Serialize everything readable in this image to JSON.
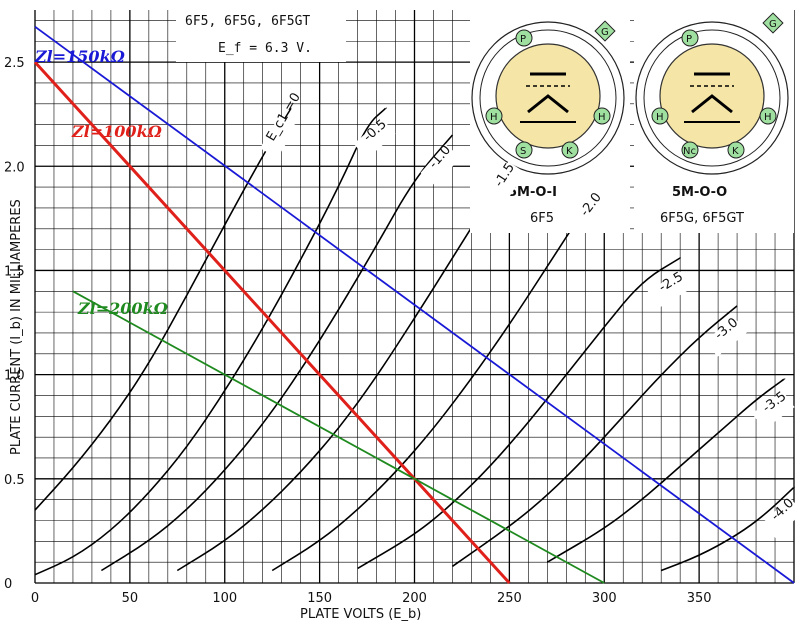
{
  "chart_data": {
    "type": "line",
    "title": {
      "tubes": "6F5, 6F5G, 6F5GT",
      "heater": "E_f = 6.3 V."
    },
    "xlabel": "PLATE VOLTS (E_b)",
    "ylabel": "PLATE CURRENT (I_b) IN MILLIAMPERES",
    "xlim": [
      0,
      400
    ],
    "ylim": [
      0,
      2.75
    ],
    "x_ticks": [
      "0",
      "50",
      "100",
      "150",
      "200",
      "250",
      "300",
      "350"
    ],
    "y_ticks": [
      "0",
      "0.5",
      "1.0",
      "1.5",
      "2.0",
      "2.5"
    ],
    "grid": true,
    "series": [
      {
        "name": "E_c1 = 0",
        "label": "E_c1 =0",
        "points": [
          [
            0,
            0.35
          ],
          [
            20,
            0.55
          ],
          [
            40,
            0.78
          ],
          [
            60,
            1.05
          ],
          [
            80,
            1.38
          ],
          [
            100,
            1.72
          ],
          [
            120,
            2.05
          ],
          [
            135,
            2.28
          ]
        ]
      },
      {
        "name": "-0.5",
        "label": "-0.5",
        "points": [
          [
            0,
            0.04
          ],
          [
            20,
            0.12
          ],
          [
            40,
            0.25
          ],
          [
            60,
            0.43
          ],
          [
            80,
            0.65
          ],
          [
            100,
            0.92
          ],
          [
            120,
            1.22
          ],
          [
            140,
            1.55
          ],
          [
            160,
            1.9
          ],
          [
            175,
            2.2
          ],
          [
            185,
            2.28
          ]
        ]
      },
      {
        "name": "-1.0",
        "label": "-1.0",
        "points": [
          [
            35,
            0.06
          ],
          [
            60,
            0.2
          ],
          [
            80,
            0.35
          ],
          [
            100,
            0.54
          ],
          [
            120,
            0.76
          ],
          [
            140,
            1.02
          ],
          [
            160,
            1.31
          ],
          [
            180,
            1.62
          ],
          [
            200,
            1.94
          ],
          [
            220,
            2.15
          ]
        ]
      },
      {
        "name": "-1.5",
        "label": "-1.5",
        "points": [
          [
            75,
            0.06
          ],
          [
            100,
            0.2
          ],
          [
            120,
            0.35
          ],
          [
            140,
            0.53
          ],
          [
            160,
            0.74
          ],
          [
            180,
            0.99
          ],
          [
            200,
            1.27
          ],
          [
            220,
            1.56
          ],
          [
            240,
            1.85
          ],
          [
            255,
            2.06
          ]
        ]
      },
      {
        "name": "-2.0",
        "label": "-2.0",
        "points": [
          [
            125,
            0.06
          ],
          [
            150,
            0.2
          ],
          [
            170,
            0.35
          ],
          [
            190,
            0.53
          ],
          [
            210,
            0.74
          ],
          [
            230,
            0.98
          ],
          [
            250,
            1.24
          ],
          [
            270,
            1.52
          ],
          [
            290,
            1.8
          ],
          [
            300,
            1.92
          ]
        ]
      },
      {
        "name": "-2.5",
        "label": "-2.5",
        "points": [
          [
            170,
            0.07
          ],
          [
            200,
            0.23
          ],
          [
            220,
            0.38
          ],
          [
            240,
            0.56
          ],
          [
            260,
            0.77
          ],
          [
            280,
            1.0
          ],
          [
            300,
            1.23
          ],
          [
            320,
            1.45
          ],
          [
            340,
            1.56
          ]
        ]
      },
      {
        "name": "-3.0",
        "label": "-3.0",
        "points": [
          [
            220,
            0.08
          ],
          [
            250,
            0.27
          ],
          [
            270,
            0.42
          ],
          [
            290,
            0.6
          ],
          [
            310,
            0.8
          ],
          [
            330,
            1.0
          ],
          [
            350,
            1.18
          ],
          [
            370,
            1.33
          ]
        ]
      },
      {
        "name": "-3.5",
        "label": "-3.5",
        "points": [
          [
            270,
            0.1
          ],
          [
            300,
            0.26
          ],
          [
            320,
            0.4
          ],
          [
            340,
            0.56
          ],
          [
            360,
            0.72
          ],
          [
            380,
            0.88
          ],
          [
            395,
            0.98
          ]
        ]
      },
      {
        "name": "-4.0",
        "label": "-4.0",
        "points": [
          [
            330,
            0.06
          ],
          [
            350,
            0.13
          ],
          [
            370,
            0.23
          ],
          [
            385,
            0.33
          ],
          [
            400,
            0.46
          ]
        ]
      }
    ],
    "load_lines": [
      {
        "label": "Zl=150kΩ",
        "color": "#1a1ad6",
        "points": [
          [
            0,
            2.67
          ],
          [
            400,
            0.0
          ]
        ]
      },
      {
        "label": "Zl=100kΩ",
        "color": "#e0201a",
        "points": [
          [
            0,
            2.5
          ],
          [
            250,
            0.0
          ]
        ]
      },
      {
        "label": "Zl=200kΩ",
        "color": "#1f8a1f",
        "points": [
          [
            20,
            1.4
          ],
          [
            300,
            0.0
          ]
        ]
      }
    ],
    "base_diagrams": [
      {
        "code": "5M-O-I",
        "tubes": "6F5",
        "pins": [
          "P",
          "G",
          "H",
          "H",
          "S",
          "K"
        ]
      },
      {
        "code": "5M-O-O",
        "tubes": "6F5G, 6F5GT",
        "pins": [
          "P",
          "G",
          "H",
          "H",
          "Nc",
          "K"
        ]
      }
    ]
  }
}
